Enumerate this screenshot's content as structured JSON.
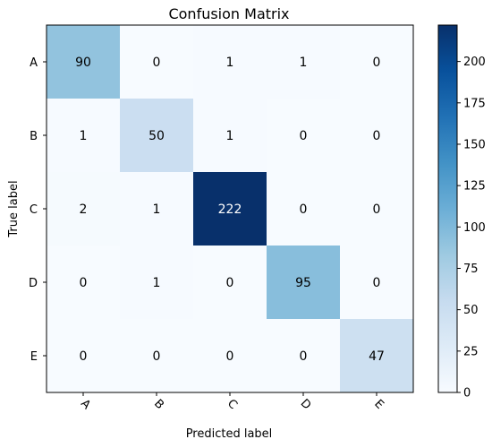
{
  "chart_data": {
    "type": "heatmap",
    "title": "Confusion Matrix",
    "xlabel": "Predicted label",
    "ylabel": "True label",
    "x_categories": [
      "A",
      "B",
      "C",
      "D",
      "E"
    ],
    "y_categories": [
      "A",
      "B",
      "C",
      "D",
      "E"
    ],
    "values": [
      [
        90,
        0,
        1,
        1,
        0
      ],
      [
        1,
        50,
        1,
        0,
        0
      ],
      [
        2,
        1,
        222,
        0,
        0
      ],
      [
        0,
        1,
        0,
        95,
        0
      ],
      [
        0,
        0,
        0,
        0,
        47
      ]
    ],
    "colormap": "Blues",
    "colors": {
      "low": "#f7fbff",
      "high": "#08306b",
      "text_dark": "#000000",
      "text_light": "#ffffff"
    },
    "colorbar": {
      "range": [
        0,
        222
      ],
      "ticks": [
        0,
        25,
        50,
        75,
        100,
        125,
        150,
        175,
        200
      ]
    },
    "x_tick_rotation": "45 degrees",
    "grid": false
  }
}
